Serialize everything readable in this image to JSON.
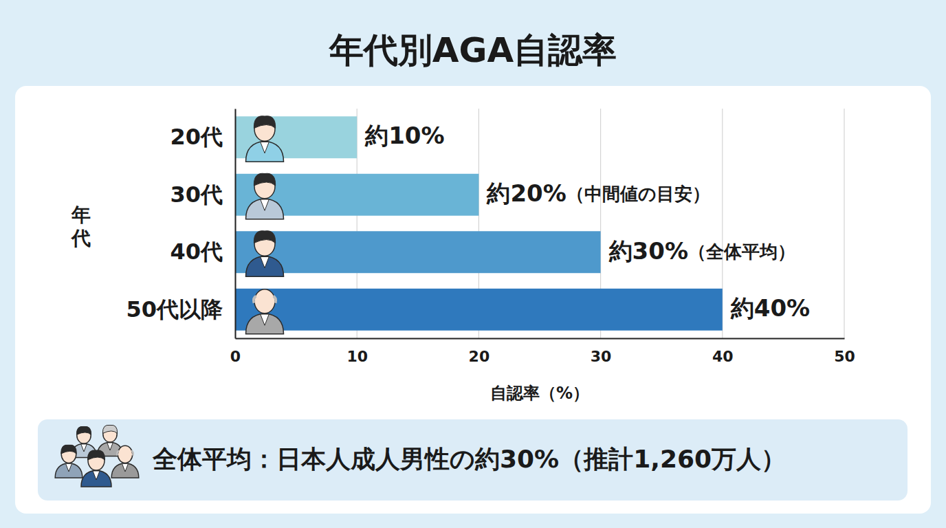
{
  "chart_data": {
    "type": "bar",
    "orientation": "horizontal",
    "title": "年代別AGA自認率",
    "categories": [
      "20代",
      "30代",
      "40代",
      "50代以降"
    ],
    "values": [
      10,
      20,
      30,
      40
    ],
    "value_labels": [
      "約10%",
      "約20%（中間値の目安）",
      "約30%（全体平均）",
      "約40%"
    ],
    "colors": [
      "#99d3de",
      "#69b4d6",
      "#4e99cc",
      "#2f79bd"
    ],
    "xlabel": "自認率（%）",
    "ylabel": "年代",
    "xlim": [
      0,
      50
    ],
    "xticks": [
      0,
      10,
      20,
      30,
      40,
      50
    ],
    "grid": true,
    "data_labels": true,
    "annotations": [
      "全体平均：日本人成人男性の約30%（推計1,260万人）"
    ]
  }
}
